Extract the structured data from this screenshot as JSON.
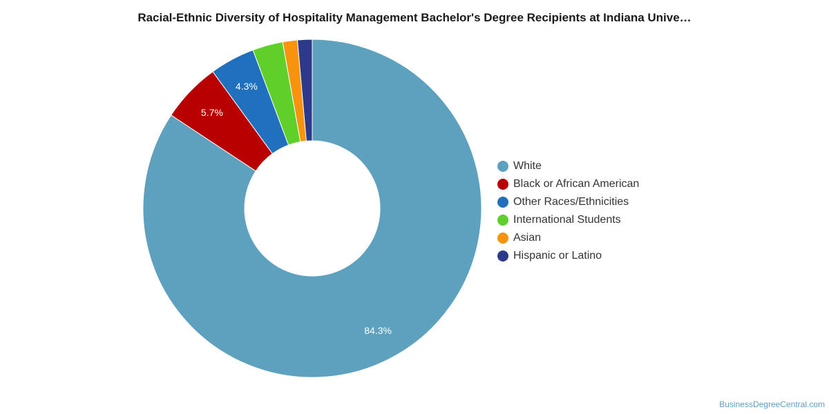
{
  "chart_data": {
    "type": "pie",
    "title": "Racial-Ethnic Diversity of Hospitality Management Bachelor's Degree Recipients at Indiana Unive…",
    "series": [
      {
        "name": "White",
        "value": 84.3,
        "label": "84.3%",
        "color": "#5ea1bf"
      },
      {
        "name": "Black or African American",
        "value": 5.7,
        "label": "5.7%",
        "color": "#b90000"
      },
      {
        "name": "Other Races/Ethnicities",
        "value": 4.3,
        "label": "4.3%",
        "color": "#2070be"
      },
      {
        "name": "International Students",
        "value": 2.9,
        "label": "",
        "color": "#5fcf2a"
      },
      {
        "name": "Asian",
        "value": 1.4,
        "label": "",
        "color": "#f7930d"
      },
      {
        "name": "Hispanic or Latino",
        "value": 1.4,
        "label": "",
        "color": "#2d3a8c"
      }
    ],
    "legend_position": "right",
    "donut": true
  },
  "footer": {
    "source": "BusinessDegreeCentral.com"
  }
}
